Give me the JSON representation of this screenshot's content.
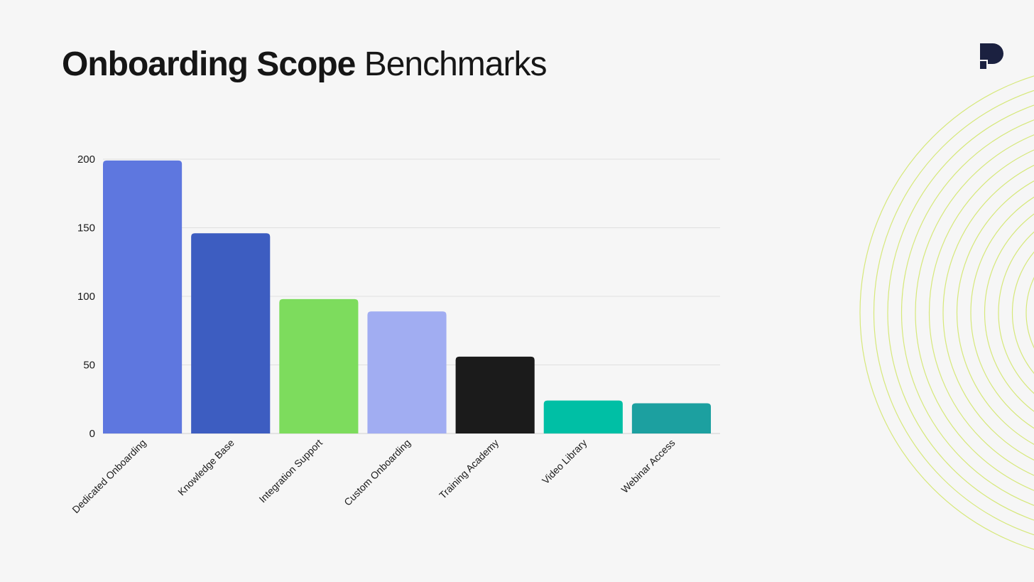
{
  "title": {
    "bold": "Onboarding Scope",
    "light": "Benchmarks"
  },
  "logo": {
    "icon": "brand-p-logo-icon",
    "color": "#1b2140"
  },
  "decoration": {
    "icon": "concentric-rings-icon",
    "color": "#d6e87a"
  },
  "chart_data": {
    "type": "bar",
    "title": "",
    "xlabel": "",
    "ylabel": "",
    "categories": [
      "Dedicated Onboarding",
      "Knowledge Base",
      "Integration Support",
      "Custom Onboarding",
      "Training Academy",
      "Video Library",
      "Webinar Access"
    ],
    "values": [
      199,
      146,
      98,
      89,
      56,
      24,
      22
    ],
    "colors": [
      "#5e77df",
      "#3d5dc1",
      "#7ddc5d",
      "#a1adf2",
      "#1b1b1b",
      "#00bfa5",
      "#1ca0a0"
    ],
    "ylim": [
      0,
      200
    ],
    "yticks": [
      0,
      50,
      100,
      150,
      200
    ],
    "grid": true,
    "legend": "none"
  }
}
